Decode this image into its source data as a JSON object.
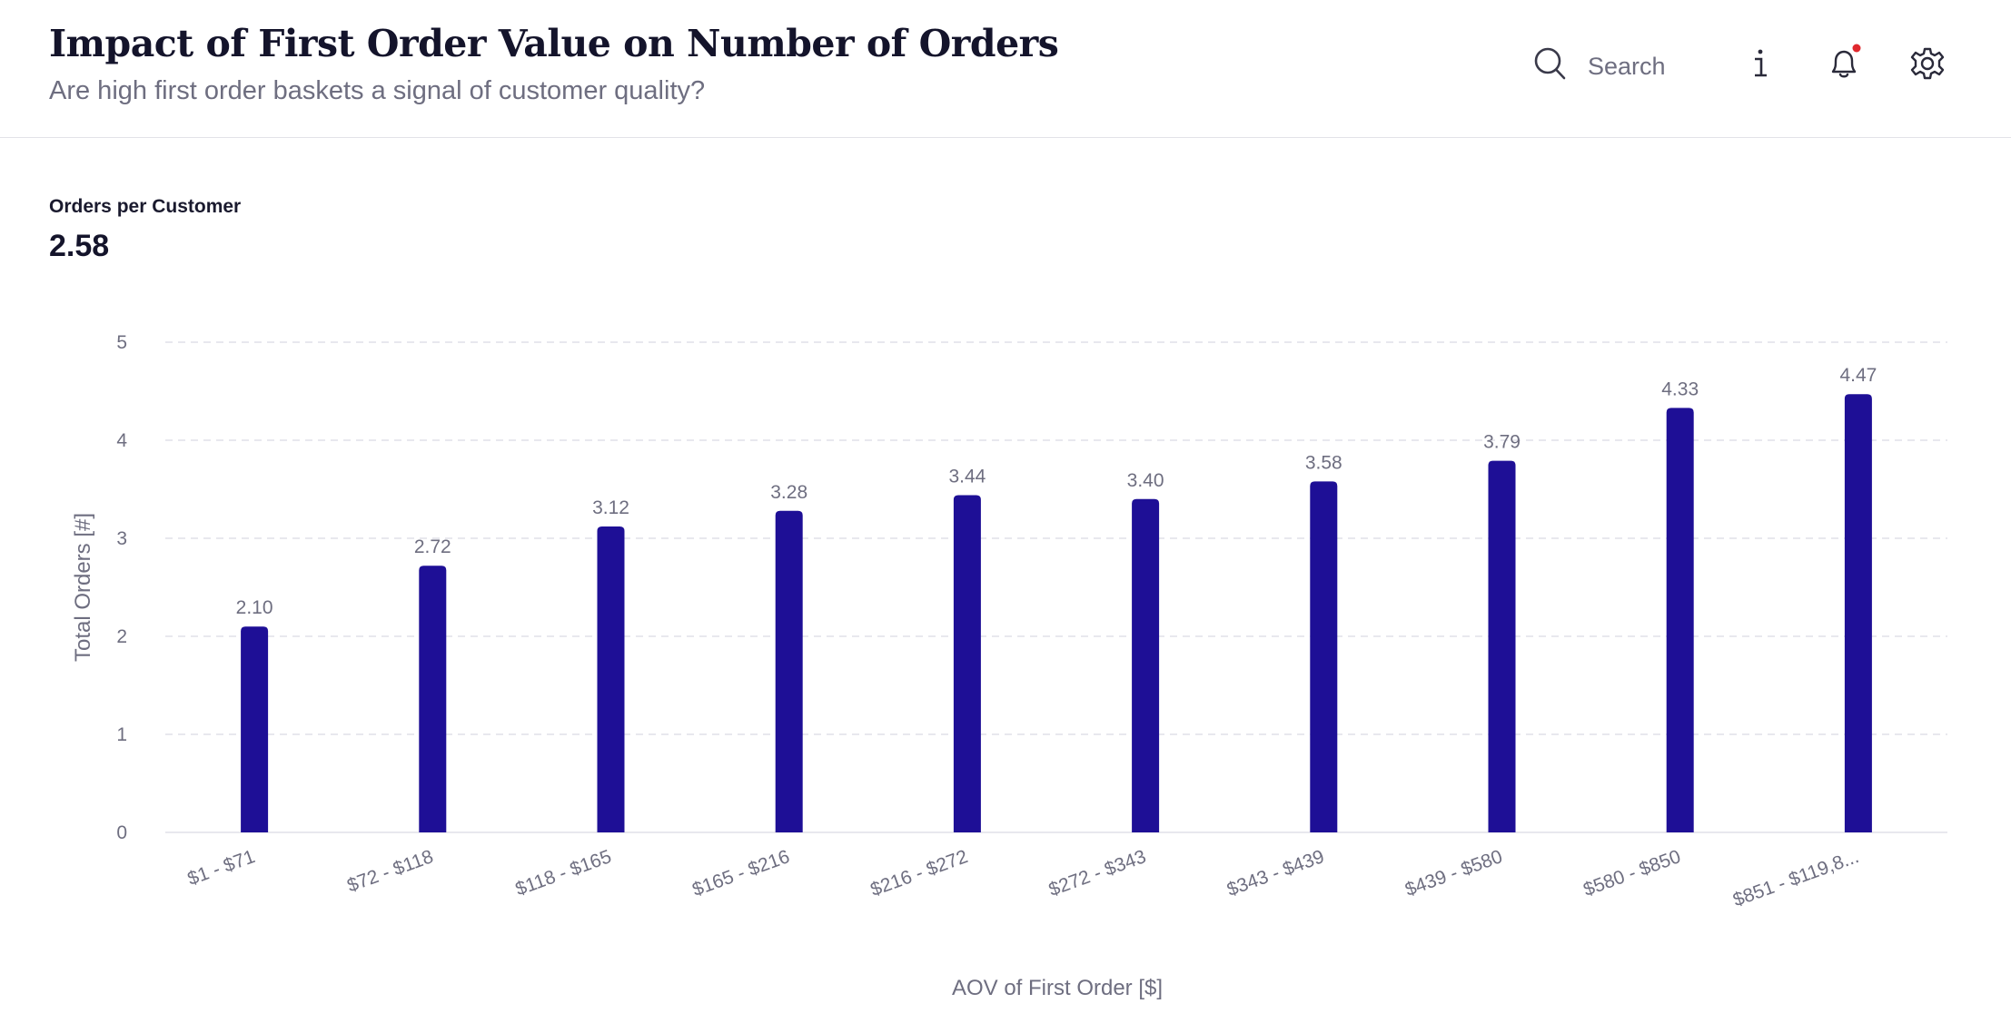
{
  "header": {
    "title": "Impact of First Order Value on Number of Orders",
    "subtitle": "Are high first order baskets a signal of customer quality?",
    "search_label": "Search",
    "info_icon": "info-icon",
    "notification_icon": "bell-icon",
    "settings_icon": "gear-icon"
  },
  "kpi": {
    "label": "Orders per Customer",
    "value": "2.58"
  },
  "colors": {
    "bar": "#1e0f96",
    "notification_dot": "#e0282e",
    "grid": "#e1e1e8"
  },
  "chart_data": {
    "type": "bar",
    "categories": [
      "$1 - $71",
      "$72 - $118",
      "$118 - $165",
      "$165 - $216",
      "$216 - $272",
      "$272 - $343",
      "$343 - $439",
      "$439 - $580",
      "$580 - $850",
      "$851 - $119,8..."
    ],
    "values": [
      2.1,
      2.72,
      3.12,
      3.28,
      3.44,
      3.4,
      3.58,
      3.79,
      4.33,
      4.47
    ],
    "value_labels": [
      "2.10",
      "2.72",
      "3.12",
      "3.28",
      "3.44",
      "3.40",
      "3.58",
      "3.79",
      "4.33",
      "4.47"
    ],
    "xlabel": "AOV of First Order [$]",
    "ylabel": "Total Orders [#]",
    "ylim": [
      0,
      5
    ],
    "yticks": [
      0,
      1,
      2,
      3,
      4,
      5
    ],
    "grid": true
  }
}
